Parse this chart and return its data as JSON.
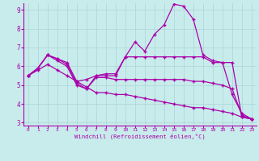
{
  "xlabel": "Windchill (Refroidissement éolien,°C)",
  "background_color": "#c8ecec",
  "grid_color": "#b0d8d8",
  "line_color": "#aa00aa",
  "axis_color": "#aa00aa",
  "x": [
    0,
    1,
    2,
    3,
    4,
    5,
    6,
    7,
    8,
    9,
    10,
    11,
    12,
    13,
    14,
    15,
    16,
    17,
    18,
    19,
    20,
    21,
    22,
    23
  ],
  "line1": [
    5.5,
    5.9,
    6.6,
    6.4,
    6.2,
    5.2,
    5.3,
    5.5,
    5.5,
    5.5,
    6.5,
    7.3,
    6.8,
    7.7,
    8.2,
    9.3,
    9.2,
    8.5,
    6.6,
    6.3,
    6.2,
    4.5,
    3.5,
    3.2
  ],
  "line2": [
    5.5,
    5.9,
    6.6,
    6.4,
    6.1,
    5.1,
    4.8,
    5.5,
    5.6,
    5.6,
    6.5,
    6.5,
    6.5,
    6.5,
    6.5,
    6.5,
    6.5,
    6.5,
    6.5,
    6.2,
    6.2,
    6.2,
    3.3,
    3.2
  ],
  "line3": [
    5.5,
    5.9,
    6.6,
    6.3,
    6.0,
    5.0,
    4.8,
    5.4,
    5.4,
    5.3,
    5.3,
    5.3,
    5.3,
    5.3,
    5.3,
    5.3,
    5.3,
    5.2,
    5.2,
    5.1,
    5.0,
    4.8,
    3.4,
    3.2
  ],
  "line4": [
    5.5,
    5.8,
    6.1,
    5.8,
    5.5,
    5.2,
    4.9,
    4.6,
    4.6,
    4.5,
    4.5,
    4.4,
    4.3,
    4.2,
    4.1,
    4.0,
    3.9,
    3.8,
    3.8,
    3.7,
    3.6,
    3.5,
    3.3,
    3.2
  ],
  "ylim": [
    3,
    9
  ],
  "xlim": [
    0,
    23
  ],
  "yticks": [
    3,
    4,
    5,
    6,
    7,
    8,
    9
  ],
  "xticks": [
    0,
    1,
    2,
    3,
    4,
    5,
    6,
    7,
    8,
    9,
    10,
    11,
    12,
    13,
    14,
    15,
    16,
    17,
    18,
    19,
    20,
    21,
    22,
    23
  ],
  "xtick_labels": [
    "0",
    "1",
    "2",
    "3",
    "4",
    "5",
    "6",
    "7",
    "8",
    "9",
    "10",
    "11",
    "12",
    "13",
    "14",
    "15",
    "16",
    "17",
    "18",
    "19",
    "20",
    "21",
    "22",
    "23"
  ]
}
